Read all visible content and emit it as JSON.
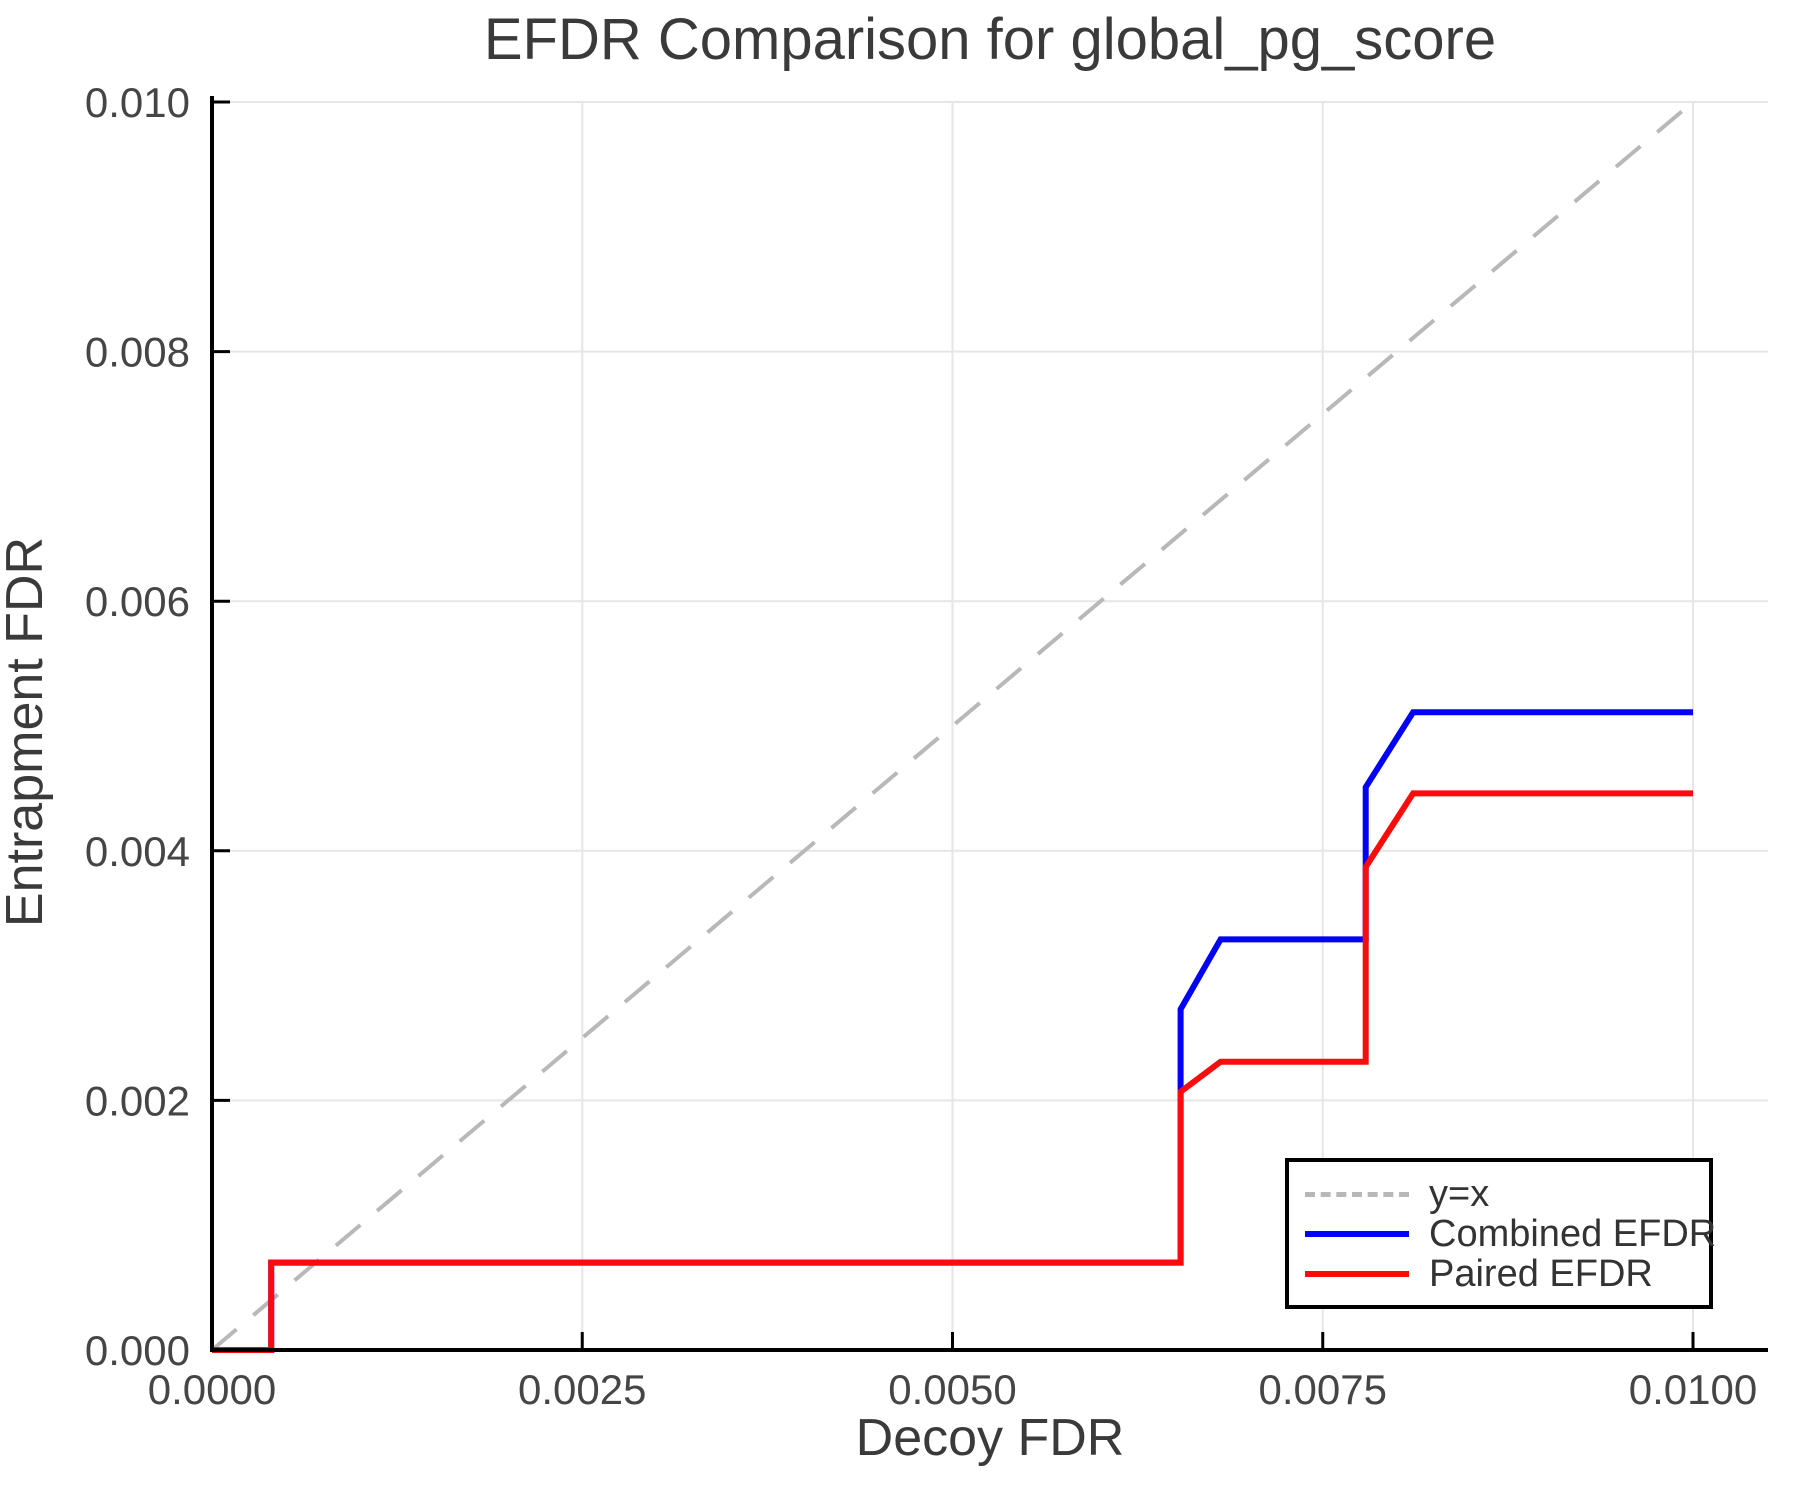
{
  "chart_data": {
    "type": "line",
    "title": "EFDR Comparison for global_pg_score",
    "xlabel": "Decoy FDR",
    "ylabel": "Entrapment FDR",
    "xlim": [
      0.0,
      0.01
    ],
    "ylim": [
      0.0,
      0.01
    ],
    "x_ticks": [
      0.0,
      0.0025,
      0.005,
      0.0075,
      0.01
    ],
    "x_tick_labels": [
      "0.0000",
      "0.0025",
      "0.0050",
      "0.0075",
      "0.0100"
    ],
    "y_ticks": [
      0.0,
      0.002,
      0.004,
      0.006,
      0.008,
      0.01
    ],
    "y_tick_labels": [
      "0.000",
      "0.002",
      "0.004",
      "0.006",
      "0.008",
      "0.010"
    ],
    "grid": true,
    "legend": {
      "position": "lower right"
    },
    "colors": {
      "grid": "#e6e6e6",
      "axis": "#000000",
      "tick_label": "#454545",
      "identity": "#b8b8b8",
      "combined": "#0202f5",
      "paired": "#f80c0c"
    },
    "series": [
      {
        "name": "y=x",
        "style": "dashed",
        "color_key": "identity",
        "points": [
          [
            0.0,
            0.0
          ],
          [
            0.01,
            0.01
          ]
        ]
      },
      {
        "name": "Combined EFDR",
        "style": "solid",
        "color_key": "combined",
        "points": [
          [
            0.0,
            0.0
          ],
          [
            0.0004,
            0.0
          ],
          [
            0.0004,
            0.0007
          ],
          [
            0.00654,
            0.0007
          ],
          [
            0.00654,
            0.00273
          ],
          [
            0.00681,
            0.00329
          ],
          [
            0.00779,
            0.00329
          ],
          [
            0.00779,
            0.00451
          ],
          [
            0.00811,
            0.00511
          ],
          [
            0.01,
            0.00511
          ]
        ]
      },
      {
        "name": "Paired EFDR",
        "style": "solid",
        "color_key": "paired",
        "points": [
          [
            0.0,
            0.0
          ],
          [
            0.0004,
            0.0
          ],
          [
            0.0004,
            0.0007
          ],
          [
            0.00654,
            0.0007
          ],
          [
            0.00654,
            0.00207
          ],
          [
            0.00681,
            0.00231
          ],
          [
            0.00779,
            0.00231
          ],
          [
            0.00779,
            0.00387
          ],
          [
            0.00811,
            0.00446
          ],
          [
            0.01,
            0.00446
          ]
        ]
      }
    ]
  }
}
